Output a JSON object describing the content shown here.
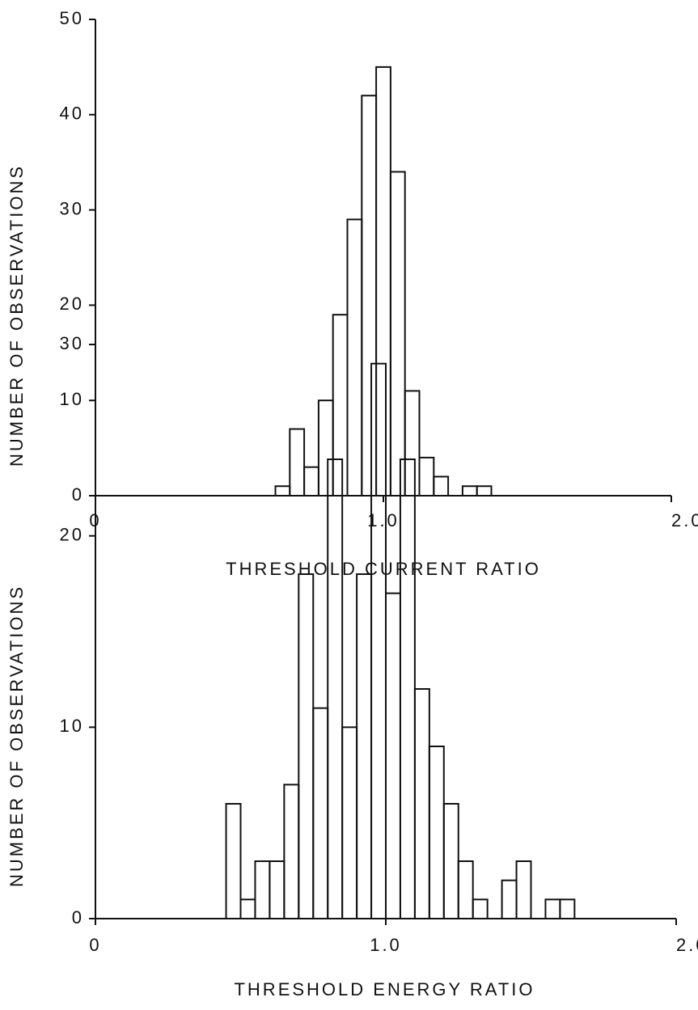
{
  "chart_data": [
    {
      "type": "histogram",
      "xlabel": "THRESHOLD CURRENT RATIO",
      "ylabel": "NUMBER OF OBSERVATIONS",
      "bins": [
        0.625,
        0.675,
        0.725,
        0.775,
        0.825,
        0.875,
        0.925,
        0.975,
        1.025,
        1.075,
        1.125,
        1.175,
        1.225,
        1.275,
        1.325,
        1.375
      ],
      "values": [
        1,
        7,
        3,
        10,
        19,
        29,
        42,
        45,
        34,
        11,
        4,
        2,
        0,
        1,
        1
      ],
      "color": "#111111",
      "xlim": [
        0,
        2
      ],
      "xticks": [
        0,
        {
          "value": 1,
          "label": "1.0"
        },
        {
          "value": 2,
          "label": "2.0"
        }
      ],
      "ylim": [
        0,
        50
      ],
      "yticks": [
        0,
        10,
        20,
        30,
        40,
        50
      ]
    },
    {
      "type": "histogram",
      "xlabel": "THRESHOLD ENERGY RATIO",
      "ylabel": "NUMBER OF OBSERVATIONS",
      "bins": [
        0.45,
        0.5,
        0.55,
        0.6,
        0.65,
        0.7,
        0.75,
        0.8,
        0.85,
        0.9,
        0.95,
        1.0,
        1.05,
        1.1,
        1.15,
        1.2,
        1.25,
        1.3,
        1.35,
        1.4,
        1.45,
        1.5,
        1.55,
        1.6,
        1.65
      ],
      "values": [
        6,
        1,
        3,
        3,
        7,
        18,
        11,
        24,
        10,
        18,
        29,
        17,
        24,
        12,
        9,
        6,
        3,
        1,
        0,
        2,
        3,
        0,
        1,
        1
      ],
      "color": "#111111",
      "xlim": [
        0,
        2
      ],
      "xticks": [
        0,
        {
          "value": 1,
          "label": "1.0"
        },
        {
          "value": 2,
          "label": "2.0"
        }
      ],
      "ylim": [
        0,
        30
      ],
      "yticks": [
        0,
        10,
        20,
        30
      ]
    }
  ]
}
